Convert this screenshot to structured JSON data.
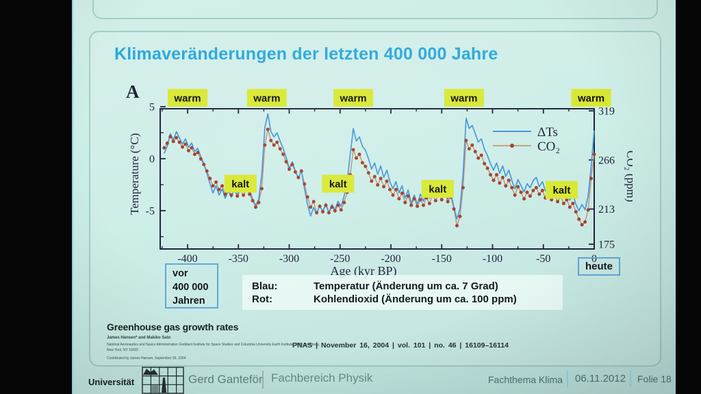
{
  "slide": {
    "title": "Klimaveränderungen der letzten 400 000 Jahre",
    "vor_box": {
      "lines": [
        "vor",
        "400 000",
        "Jahren"
      ]
    },
    "heute_label": "heute",
    "color_legend": [
      {
        "term": "Blau:",
        "desc": "Temperatur (Änderung um ca. 7 Grad)"
      },
      {
        "term": "Rot:",
        "desc": "Kohlendioxid (Änderung um ca. 100 ppm)"
      }
    ],
    "paper": {
      "title": "Greenhouse gas growth rates",
      "authors": "James Hansen* and Makiko Sato",
      "affil1": "National Aeronautics and Space Administration Goddard Institute for Space Studies and Columbia University Earth Institute, 2880 Broadway,",
      "affil2": "New York, NY 10025",
      "contributed": "Contributed by James Hansen, September 29, 2004",
      "citation": "PNAS  |  November 16, 2004  |  vol. 101  |  no. 46  |  16109–16114"
    }
  },
  "footer": {
    "university": "Universität",
    "author": "Gerd Ganteför",
    "department": "Fachbereich Physik",
    "topic": "Fachthema Klima",
    "date": "06.11.2012",
    "slide_number": "Folie 18"
  },
  "colors": {
    "title_blue": "#2ba9dc",
    "tag_background": "#d9e833",
    "temperature_line": "#4596d8",
    "co2_marker": "#a5402a",
    "co2_line": "#c0876b",
    "axis_ink": "#20223a"
  },
  "chart_data": {
    "type": "line",
    "panel_label": "A",
    "xlabel": "Age (kyr BP)",
    "ylabel_left": "Temperature (°C)",
    "ylabel_right": "CO₂ (ppm)",
    "xlim": [
      -425,
      3
    ],
    "ylim_left": [
      -8.8,
      5.4
    ],
    "ylim_right": [
      172,
      326
    ],
    "xticks": [
      -400,
      -350,
      -300,
      -250,
      -200,
      -150,
      -100,
      -50,
      0
    ],
    "xticks_minor_step": 25,
    "yticks_left": [
      5,
      0,
      -5
    ],
    "yticks_left_minor": [
      2.5,
      -2.5,
      -7.5
    ],
    "yticks_right": [
      319,
      266,
      213,
      175
    ],
    "grid": false,
    "legend_position": "top-right-inside",
    "annotations": [
      {
        "label": "warm",
        "x_kyr": -400,
        "row": "top"
      },
      {
        "label": "warm",
        "x_kyr": -322,
        "row": "top"
      },
      {
        "label": "warm",
        "x_kyr": -237,
        "row": "top"
      },
      {
        "label": "warm",
        "x_kyr": -128,
        "row": "top"
      },
      {
        "label": "warm",
        "x_kyr": -3,
        "row": "top"
      },
      {
        "label": "kalt",
        "x_kyr": -348,
        "y_temp": -2.4
      },
      {
        "label": "kalt",
        "x_kyr": -252,
        "y_temp": -2.4
      },
      {
        "label": "kalt",
        "x_kyr": -154,
        "y_temp": -2.9
      },
      {
        "label": "kalt",
        "x_kyr": -32,
        "y_temp": -3.0
      }
    ],
    "x": [
      -423,
      -420,
      -417,
      -414,
      -411,
      -408,
      -405,
      -402,
      -399,
      -396,
      -393,
      -390,
      -387,
      -384,
      -381,
      -378,
      -375,
      -372,
      -369,
      -366,
      -363,
      -360,
      -357,
      -354,
      -351,
      -348,
      -345,
      -342,
      -339,
      -336,
      -333,
      -330,
      -327,
      -324,
      -321,
      -318,
      -315,
      -312,
      -309,
      -306,
      -303,
      -300,
      -297,
      -294,
      -291,
      -288,
      -285,
      -282,
      -279,
      -276,
      -273,
      -270,
      -267,
      -264,
      -261,
      -258,
      -255,
      -252,
      -249,
      -246,
      -243,
      -240,
      -237,
      -234,
      -231,
      -228,
      -225,
      -222,
      -219,
      -216,
      -213,
      -210,
      -207,
      -204,
      -201,
      -198,
      -195,
      -192,
      -189,
      -186,
      -183,
      -180,
      -177,
      -174,
      -171,
      -168,
      -165,
      -162,
      -159,
      -156,
      -153,
      -150,
      -147,
      -144,
      -141,
      -138,
      -135,
      -132,
      -129,
      -126,
      -123,
      -120,
      -117,
      -114,
      -111,
      -108,
      -105,
      -102,
      -99,
      -96,
      -93,
      -90,
      -87,
      -84,
      -81,
      -78,
      -75,
      -72,
      -69,
      -66,
      -63,
      -60,
      -57,
      -54,
      -51,
      -48,
      -45,
      -42,
      -39,
      -36,
      -33,
      -30,
      -27,
      -24,
      -21,
      -18,
      -15,
      -12,
      -9,
      -6,
      -3,
      0
    ],
    "series": [
      {
        "name": "ΔTs",
        "axis": "left",
        "style": "line",
        "color": "#4596d8",
        "values": [
          0.5,
          1.2,
          2.4,
          1.8,
          2.6,
          2.0,
          1.4,
          1.9,
          1.1,
          1.5,
          0.7,
          1.0,
          0.2,
          -0.5,
          -1.4,
          -2.4,
          -3.3,
          -2.6,
          -3.5,
          -2.9,
          -3.8,
          -3.1,
          -3.7,
          -2.9,
          -3.5,
          -2.6,
          -3.2,
          -2.3,
          -3.0,
          -3.9,
          -4.5,
          -3.9,
          -1.5,
          3.0,
          4.3,
          2.6,
          2.1,
          2.5,
          1.7,
          1.0,
          0.1,
          -0.9,
          -0.3,
          -1.2,
          -1.9,
          -1.1,
          -2.9,
          -4.4,
          -5.5,
          -4.7,
          -5.3,
          -4.5,
          -5.1,
          -4.3,
          -5.2,
          -4.4,
          -4.9,
          -4.1,
          -4.6,
          -3.6,
          -2.2,
          0.4,
          2.9,
          1.7,
          2.1,
          1.2,
          0.8,
          0.0,
          -1.0,
          -0.4,
          -1.5,
          -0.7,
          -1.8,
          -1.1,
          -2.2,
          -2.9,
          -2.2,
          -3.3,
          -2.6,
          -3.8,
          -3.0,
          -4.3,
          -3.5,
          -4.4,
          -3.4,
          -4.1,
          -3.2,
          -3.8,
          -2.8,
          -3.4,
          -2.9,
          -3.6,
          -2.8,
          -3.9,
          -3.3,
          -4.7,
          -5.8,
          -4.8,
          -1.5,
          3.9,
          2.9,
          3.2,
          2.4,
          1.6,
          1.9,
          0.9,
          0.3,
          -0.5,
          -1.1,
          -0.4,
          -1.4,
          -0.7,
          -1.7,
          -1.1,
          -2.1,
          -2.9,
          -2.0,
          -2.6,
          -3.2,
          -2.4,
          -2.8,
          -2.1,
          -1.8,
          -2.7,
          -2.2,
          -3.1,
          -2.4,
          -3.2,
          -2.6,
          -3.4,
          -2.8,
          -3.6,
          -3.0,
          -4.0,
          -3.4,
          -4.4,
          -5.0,
          -4.4,
          -4.9,
          -3.6,
          -0.8,
          2.7
        ]
      },
      {
        "name": "CO₂",
        "axis": "right",
        "style": "line+markers",
        "color": "#a5402a",
        "line_color": "#c0876b",
        "values": [
          279,
          284,
          291,
          286,
          290,
          285,
          280,
          283,
          276,
          279,
          272,
          274,
          267,
          261,
          254,
          246,
          238,
          242,
          234,
          238,
          229,
          234,
          228,
          233,
          227,
          233,
          228,
          234,
          229,
          222,
          215,
          220,
          235,
          282,
          299,
          287,
          282,
          285,
          278,
          272,
          264,
          256,
          261,
          253,
          247,
          254,
          240,
          226,
          215,
          221,
          209,
          216,
          210,
          217,
          209,
          215,
          211,
          217,
          212,
          220,
          231,
          250,
          277,
          268,
          272,
          263,
          259,
          252,
          243,
          248,
          239,
          246,
          237,
          243,
          234,
          228,
          234,
          224,
          230,
          220,
          227,
          217,
          224,
          216,
          223,
          217,
          225,
          219,
          228,
          222,
          229,
          223,
          230,
          221,
          226,
          213,
          195,
          205,
          236,
          287,
          278,
          282,
          275,
          268,
          271,
          262,
          257,
          250,
          244,
          250,
          241,
          247,
          238,
          244,
          236,
          228,
          237,
          231,
          224,
          231,
          227,
          233,
          236,
          229,
          233,
          225,
          230,
          223,
          228,
          221,
          226,
          219,
          223,
          215,
          219,
          210,
          202,
          196,
          199,
          212,
          246,
          272
        ]
      }
    ]
  }
}
